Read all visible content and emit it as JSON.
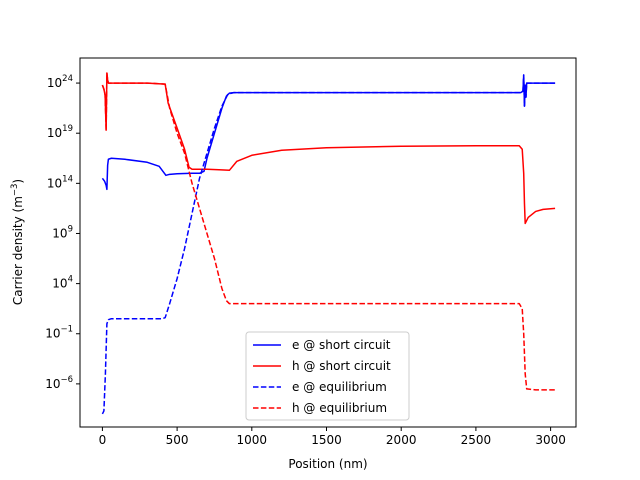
{
  "chart_data": {
    "type": "line",
    "title": "",
    "xlabel": "Position (nm)",
    "ylabel": "Carrier density (m",
    "ylabel_sup": "−3",
    "ylabel_close": ")",
    "xlim": [
      -150,
      3170
    ],
    "ylim_log10": [
      -10.3,
      26.5
    ],
    "log_y": true,
    "grid": false,
    "legend_position": "lower-center",
    "x_ticks": [
      {
        "value": 0,
        "label": "0"
      },
      {
        "value": 500,
        "label": "500"
      },
      {
        "value": 1000,
        "label": "1000"
      },
      {
        "value": 1500,
        "label": "1500"
      },
      {
        "value": 2000,
        "label": "2000"
      },
      {
        "value": 2500,
        "label": "2500"
      },
      {
        "value": 3000,
        "label": "3000"
      }
    ],
    "y_ticks": [
      {
        "exp": -6,
        "base": "10",
        "sup": "−6"
      },
      {
        "exp": -1,
        "base": "10",
        "sup": "−1"
      },
      {
        "exp": 4,
        "base": "10",
        "sup": "4"
      },
      {
        "exp": 9,
        "base": "10",
        "sup": "9"
      },
      {
        "exp": 14,
        "base": "10",
        "sup": "14"
      },
      {
        "exp": 19,
        "base": "10",
        "sup": "19"
      },
      {
        "exp": 24,
        "base": "10",
        "sup": "24"
      }
    ],
    "series": [
      {
        "name": "e @ short circuit",
        "color": "#0000ff",
        "dash": "solid",
        "points": [
          [
            0,
            14.5
          ],
          [
            15,
            14.2
          ],
          [
            25,
            13.8
          ],
          [
            30,
            13.4
          ],
          [
            35,
            15.8
          ],
          [
            40,
            16.4
          ],
          [
            60,
            16.5
          ],
          [
            150,
            16.4
          ],
          [
            300,
            16.1
          ],
          [
            380,
            15.7
          ],
          [
            410,
            15.1
          ],
          [
            425,
            14.8
          ],
          [
            450,
            14.9
          ],
          [
            500,
            14.95
          ],
          [
            600,
            15.0
          ],
          [
            650,
            15.0
          ],
          [
            680,
            15.2
          ],
          [
            700,
            16.5
          ],
          [
            750,
            19.0
          ],
          [
            800,
            21.5
          ],
          [
            830,
            22.7
          ],
          [
            850,
            23.0
          ],
          [
            880,
            23.05
          ],
          [
            1000,
            23.05
          ],
          [
            1500,
            23.05
          ],
          [
            2000,
            23.05
          ],
          [
            2500,
            23.05
          ],
          [
            2800,
            23.05
          ],
          [
            2815,
            23.2
          ],
          [
            2820,
            24.8
          ],
          [
            2825,
            21.7
          ],
          [
            2830,
            23.8
          ],
          [
            2835,
            22.6
          ],
          [
            2840,
            24.0
          ],
          [
            2850,
            24.0
          ],
          [
            2950,
            24.0
          ],
          [
            3030,
            24.0
          ]
        ]
      },
      {
        "name": "h @ short circuit",
        "color": "#ff0000",
        "dash": "solid",
        "points": [
          [
            0,
            23.8
          ],
          [
            10,
            23.4
          ],
          [
            18,
            22.8
          ],
          [
            25,
            19.3
          ],
          [
            30,
            25.0
          ],
          [
            35,
            24.3
          ],
          [
            40,
            24.0
          ],
          [
            100,
            24.0
          ],
          [
            300,
            24.0
          ],
          [
            420,
            23.9
          ],
          [
            440,
            22.0
          ],
          [
            500,
            19.5
          ],
          [
            550,
            17.4
          ],
          [
            580,
            15.6
          ],
          [
            600,
            15.4
          ],
          [
            700,
            15.4
          ],
          [
            780,
            15.35
          ],
          [
            850,
            15.3
          ],
          [
            900,
            16.2
          ],
          [
            1000,
            16.8
          ],
          [
            1200,
            17.3
          ],
          [
            1500,
            17.55
          ],
          [
            2000,
            17.7
          ],
          [
            2500,
            17.75
          ],
          [
            2790,
            17.75
          ],
          [
            2810,
            17.4
          ],
          [
            2820,
            15.0
          ],
          [
            2825,
            12.0
          ],
          [
            2830,
            10.0
          ],
          [
            2850,
            10.6
          ],
          [
            2900,
            11.2
          ],
          [
            2950,
            11.4
          ],
          [
            3030,
            11.5
          ]
        ]
      },
      {
        "name": "e @ equilibrium",
        "color": "#0000ff",
        "dash": "dashed",
        "points": [
          [
            0,
            -9.0
          ],
          [
            10,
            -8.7
          ],
          [
            20,
            -5.0
          ],
          [
            30,
            0.0
          ],
          [
            35,
            0.2
          ],
          [
            40,
            0.4
          ],
          [
            60,
            0.5
          ],
          [
            200,
            0.5
          ],
          [
            400,
            0.5
          ],
          [
            420,
            0.6
          ],
          [
            450,
            2.0
          ],
          [
            500,
            4.5
          ],
          [
            550,
            7.5
          ],
          [
            600,
            11.0
          ],
          [
            650,
            14.5
          ],
          [
            700,
            17.0
          ],
          [
            750,
            19.5
          ],
          [
            800,
            21.7
          ],
          [
            840,
            22.9
          ],
          [
            880,
            23.05
          ],
          [
            1000,
            23.05
          ],
          [
            1500,
            23.05
          ],
          [
            2000,
            23.05
          ],
          [
            2500,
            23.05
          ],
          [
            2800,
            23.05
          ],
          [
            2815,
            23.2
          ],
          [
            2820,
            24.8
          ],
          [
            2825,
            21.7
          ],
          [
            2830,
            23.8
          ],
          [
            2835,
            22.6
          ],
          [
            2840,
            24.0
          ],
          [
            2950,
            24.0
          ],
          [
            3030,
            24.0
          ]
        ]
      },
      {
        "name": "h @ equilibrium",
        "color": "#ff0000",
        "dash": "dashed",
        "points": [
          [
            0,
            23.8
          ],
          [
            10,
            23.4
          ],
          [
            18,
            22.8
          ],
          [
            25,
            19.3
          ],
          [
            30,
            25.0
          ],
          [
            35,
            24.3
          ],
          [
            40,
            24.0
          ],
          [
            300,
            24.0
          ],
          [
            420,
            23.9
          ],
          [
            450,
            21.5
          ],
          [
            500,
            19.0
          ],
          [
            550,
            17.0
          ],
          [
            600,
            14.0
          ],
          [
            650,
            11.5
          ],
          [
            700,
            9.0
          ],
          [
            750,
            6.5
          ],
          [
            800,
            3.5
          ],
          [
            830,
            2.3
          ],
          [
            850,
            2.0
          ],
          [
            1000,
            2.0
          ],
          [
            1500,
            2.0
          ],
          [
            2000,
            2.0
          ],
          [
            2500,
            2.0
          ],
          [
            2790,
            2.0
          ],
          [
            2810,
            1.5
          ],
          [
            2820,
            -1.0
          ],
          [
            2830,
            -5.0
          ],
          [
            2840,
            -6.5
          ],
          [
            2900,
            -6.6
          ],
          [
            3030,
            -6.6
          ]
        ]
      }
    ]
  }
}
